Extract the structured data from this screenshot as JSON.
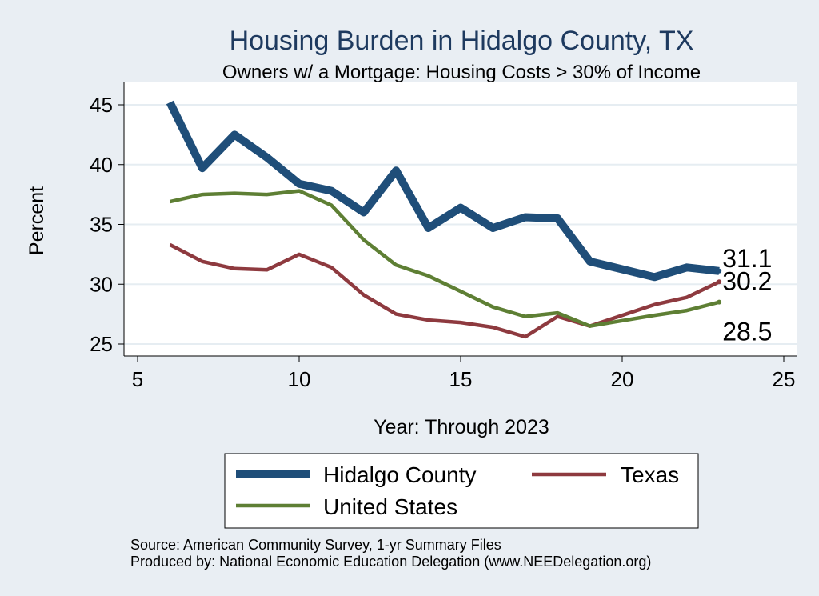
{
  "chart_data": {
    "type": "line",
    "title": "Housing Burden in Hidalgo County, TX",
    "subtitle": "Owners w/ a Mortgage: Housing Costs > 30% of Income",
    "xlabel": "Year: Through 2023",
    "ylabel": "Percent",
    "xlim": [
      5,
      25
    ],
    "ylim": [
      24.2,
      46
    ],
    "x_ticks": [
      5,
      10,
      15,
      20,
      25
    ],
    "y_ticks": [
      25,
      30,
      35,
      40,
      45
    ],
    "grid": true,
    "legend_position": "bottom",
    "x": [
      6,
      7,
      8,
      9,
      10,
      11,
      12,
      13,
      14,
      15,
      16,
      17,
      18,
      19,
      21,
      22,
      23
    ],
    "series": [
      {
        "name": "Hidalgo County",
        "color": "#1f4e79",
        "values": [
          45.2,
          39.7,
          42.5,
          40.6,
          38.4,
          37.8,
          36.0,
          39.5,
          34.7,
          36.4,
          34.7,
          35.6,
          35.5,
          31.9,
          30.6,
          31.4,
          31.1
        ],
        "end_label": "31.1"
      },
      {
        "name": "Texas",
        "color": "#8e3a3f",
        "values": [
          33.3,
          31.9,
          31.3,
          31.2,
          32.5,
          31.4,
          29.1,
          27.5,
          27.0,
          26.8,
          26.4,
          25.6,
          27.3,
          26.5,
          28.3,
          28.9,
          30.2
        ],
        "end_label": "30.2"
      },
      {
        "name": "United States",
        "color": "#5e7f34",
        "values": [
          36.9,
          37.5,
          37.6,
          37.5,
          37.8,
          36.6,
          33.7,
          31.6,
          30.7,
          29.4,
          28.1,
          27.3,
          27.6,
          26.5,
          27.4,
          27.8,
          28.5
        ],
        "end_label": "28.5"
      }
    ],
    "notes": [
      "Source: American Community Survey, 1-yr Summary Files",
      "Produced by: National Economic Education Delegation (www.NEEDelegation.org)"
    ]
  }
}
